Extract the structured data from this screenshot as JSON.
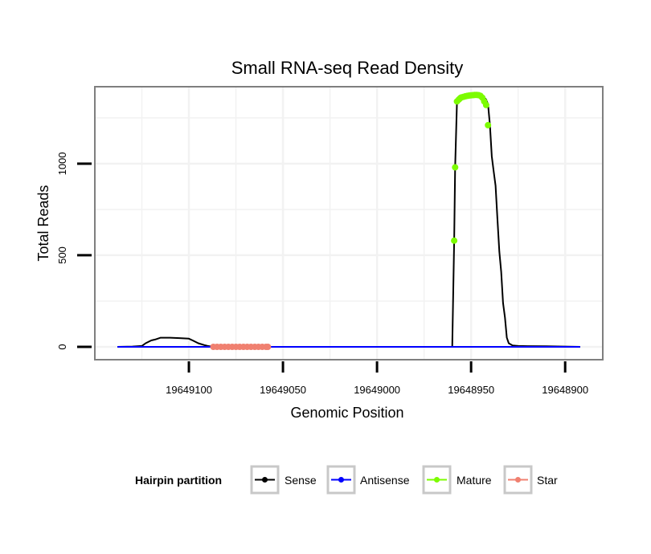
{
  "chart_data": {
    "type": "line",
    "title": "Small RNA-seq Read Density",
    "xlabel": "Genomic Position",
    "ylabel": "Total Reads",
    "x_reversed": true,
    "xlim": [
      19649150,
      19648880
    ],
    "ylim": [
      -70,
      1420
    ],
    "x_ticks": [
      19649100,
      19649050,
      19649000,
      19648950,
      19648900
    ],
    "x_tick_labels": [
      "19649100",
      "19649050",
      "19649000",
      "19648950",
      "19648900"
    ],
    "y_ticks": [
      0,
      500,
      1000
    ],
    "y_tick_labels": [
      "0",
      "500",
      "1000"
    ],
    "grid": true,
    "legend": {
      "title": "Hairpin partition",
      "position": "bottom",
      "entries": [
        {
          "label": "Sense",
          "color": "#000000"
        },
        {
          "label": "Antisense",
          "color": "#0000ff"
        },
        {
          "label": "Mature",
          "color": "#7cfc00"
        },
        {
          "label": "Star",
          "color": "#f08070"
        }
      ]
    },
    "series": [
      {
        "name": "Sense",
        "color": "#000000",
        "style": "line",
        "x": [
          19649138,
          19649130,
          19649125,
          19649123,
          19649120,
          19649118,
          19649115,
          19649110,
          19649105,
          19649100,
          19649098,
          19649095,
          19649092,
          19649090,
          19649088,
          19649080,
          19649060,
          19649000,
          19648970,
          19648960,
          19648959,
          19648958.5,
          19648957.5,
          19648956.5,
          19648955,
          19648954,
          19648950,
          19648946,
          19648944,
          19648942,
          19648941,
          19648940,
          19648939,
          19648938,
          19648937,
          19648936,
          19648935,
          19648934,
          19648933,
          19648932.5,
          19648932,
          19648931,
          19648930,
          19648928,
          19648925,
          19648920,
          19648910,
          19648892
        ],
        "y": [
          0,
          2,
          5,
          20,
          35,
          40,
          50,
          50,
          48,
          45,
          35,
          20,
          10,
          5,
          2,
          0,
          0,
          0,
          0,
          0,
          580,
          980,
          1340,
          1360,
          1365,
          1370,
          1375,
          1375,
          1370,
          1350,
          1325,
          1210,
          1040,
          960,
          880,
          700,
          520,
          410,
          240,
          200,
          160,
          50,
          20,
          8,
          5,
          4,
          3,
          0
        ]
      },
      {
        "name": "Antisense",
        "color": "#0000ff",
        "style": "line",
        "x": [
          19649138,
          19648892
        ],
        "y": [
          0,
          0
        ]
      },
      {
        "name": "Mature",
        "color": "#7cfc00",
        "style": "points",
        "x": [
          19648959,
          19648958.5,
          19648957.5,
          19648956.5,
          19648956,
          19648955.5,
          19648955,
          19648954,
          19648953,
          19648952,
          19648951,
          19648950,
          19648949,
          19648948,
          19648947,
          19648946,
          19648945,
          19648944,
          19648943,
          19648942,
          19648941
        ],
        "y": [
          580,
          980,
          1340,
          1350,
          1355,
          1360,
          1362,
          1365,
          1368,
          1370,
          1372,
          1373,
          1374,
          1375,
          1375,
          1374,
          1370,
          1360,
          1340,
          1320,
          1210
        ]
      },
      {
        "name": "Star",
        "color": "#f08070",
        "style": "points",
        "x": [
          19649087,
          19649085,
          19649083,
          19649081,
          19649079,
          19649077,
          19649075,
          19649073,
          19649071,
          19649069,
          19649067,
          19649065,
          19649063,
          19649061,
          19649059,
          19649058
        ],
        "y": [
          0,
          0,
          0,
          0,
          0,
          0,
          0,
          0,
          0,
          0,
          0,
          0,
          0,
          0,
          0,
          0
        ]
      }
    ]
  }
}
